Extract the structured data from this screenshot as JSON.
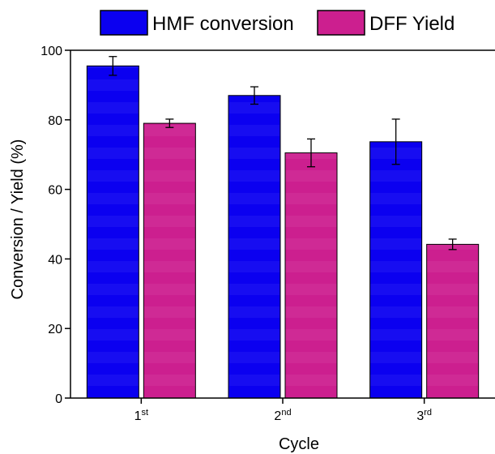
{
  "chart_data": {
    "type": "bar",
    "categories": [
      {
        "base": "1",
        "sup": "st"
      },
      {
        "base": "2",
        "sup": "nd"
      },
      {
        "base": "3",
        "sup": "rd"
      }
    ],
    "series": [
      {
        "name": "HMF conversion",
        "color": "#0b00f0",
        "values": [
          95.5,
          87.0,
          73.7
        ],
        "errors": [
          2.7,
          2.5,
          6.5
        ]
      },
      {
        "name": "DFF Yield",
        "color": "#cc1f8f",
        "values": [
          79.0,
          70.5,
          44.2
        ],
        "errors": [
          1.2,
          4.0,
          1.5
        ]
      }
    ],
    "xlabel": "Cycle",
    "ylabel": "Conversion / Yield (%)",
    "ylim": [
      0,
      100
    ],
    "yticks": [
      0,
      20,
      40,
      60,
      80,
      100
    ],
    "grid": false,
    "legend_position": "top"
  }
}
